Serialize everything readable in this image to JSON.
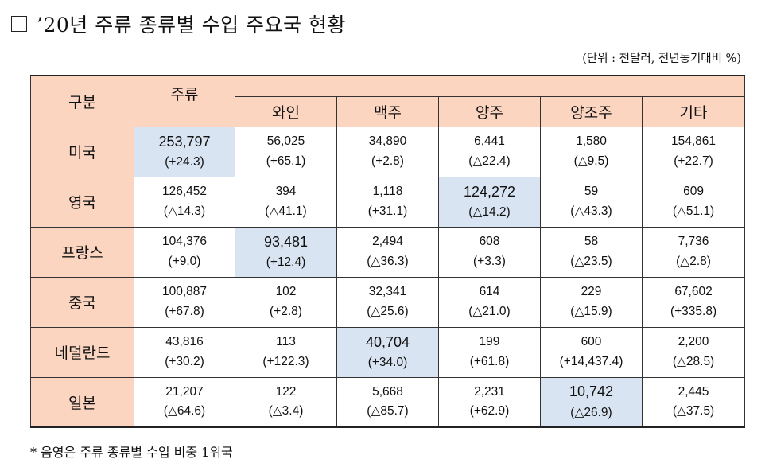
{
  "title": "’20년 주류 종류별 수입 주요국 현황",
  "unit_note": "(단위 : 천달러, 전년동기대비 %)",
  "headers": {
    "category": "구분",
    "liquor": "주류",
    "sub": [
      "와인",
      "맥주",
      "양주",
      "양조주",
      "기타"
    ]
  },
  "rows": [
    {
      "country": "미국",
      "cells": [
        {
          "value": "253,797",
          "change": "(+24.3)",
          "highlight": true
        },
        {
          "value": "56,025",
          "change": "(+65.1)"
        },
        {
          "value": "34,890",
          "change": "(+2.8)"
        },
        {
          "value": "6,441",
          "change": "(△22.4)"
        },
        {
          "value": "1,580",
          "change": "(△9.5)"
        },
        {
          "value": "154,861",
          "change": "(+22.7)"
        }
      ]
    },
    {
      "country": "영국",
      "cells": [
        {
          "value": "126,452",
          "change": "(△14.3)"
        },
        {
          "value": "394",
          "change": "(△41.1)"
        },
        {
          "value": "1,118",
          "change": "(+31.1)"
        },
        {
          "value": "124,272",
          "change": "(△14.2)",
          "highlight": true
        },
        {
          "value": "59",
          "change": "(△43.3)"
        },
        {
          "value": "609",
          "change": "(△51.1)"
        }
      ]
    },
    {
      "country": "프랑스",
      "cells": [
        {
          "value": "104,376",
          "change": "(+9.0)"
        },
        {
          "value": "93,481",
          "change": "(+12.4)",
          "highlight": true
        },
        {
          "value": "2,494",
          "change": "(△36.3)"
        },
        {
          "value": "608",
          "change": "(+3.3)"
        },
        {
          "value": "58",
          "change": "(△23.5)"
        },
        {
          "value": "7,736",
          "change": "(△2.8)"
        }
      ]
    },
    {
      "country": "중국",
      "cells": [
        {
          "value": "100,887",
          "change": "(+67.8)"
        },
        {
          "value": "102",
          "change": "(+2.8)"
        },
        {
          "value": "32,341",
          "change": "(△25.6)"
        },
        {
          "value": "614",
          "change": "(△21.0)"
        },
        {
          "value": "229",
          "change": "(△15.9)"
        },
        {
          "value": "67,602",
          "change": "(+335.8)"
        }
      ]
    },
    {
      "country": "네덜란드",
      "cells": [
        {
          "value": "43,816",
          "change": "(+30.2)"
        },
        {
          "value": "113",
          "change": "(+122.3)"
        },
        {
          "value": "40,704",
          "change": "(+34.0)",
          "highlight": true
        },
        {
          "value": "199",
          "change": "(+61.8)"
        },
        {
          "value": "600",
          "change": "(+14,437.4)"
        },
        {
          "value": "2,200",
          "change": "(△28.5)"
        }
      ]
    },
    {
      "country": "일본",
      "cells": [
        {
          "value": "21,207",
          "change": "(△64.6)"
        },
        {
          "value": "122",
          "change": "(△3.4)"
        },
        {
          "value": "5,668",
          "change": "(△85.7)"
        },
        {
          "value": "2,231",
          "change": "(+62.9)"
        },
        {
          "value": "10,742",
          "change": "(△26.9)",
          "highlight": true
        },
        {
          "value": "2,445",
          "change": "(△37.5)"
        }
      ]
    }
  ],
  "footnote": "* 음영은 주류 종류별 수입 비중 1위국",
  "colors": {
    "header_bg": "#fcd5c0",
    "highlight_bg": "#d9e4f2"
  }
}
